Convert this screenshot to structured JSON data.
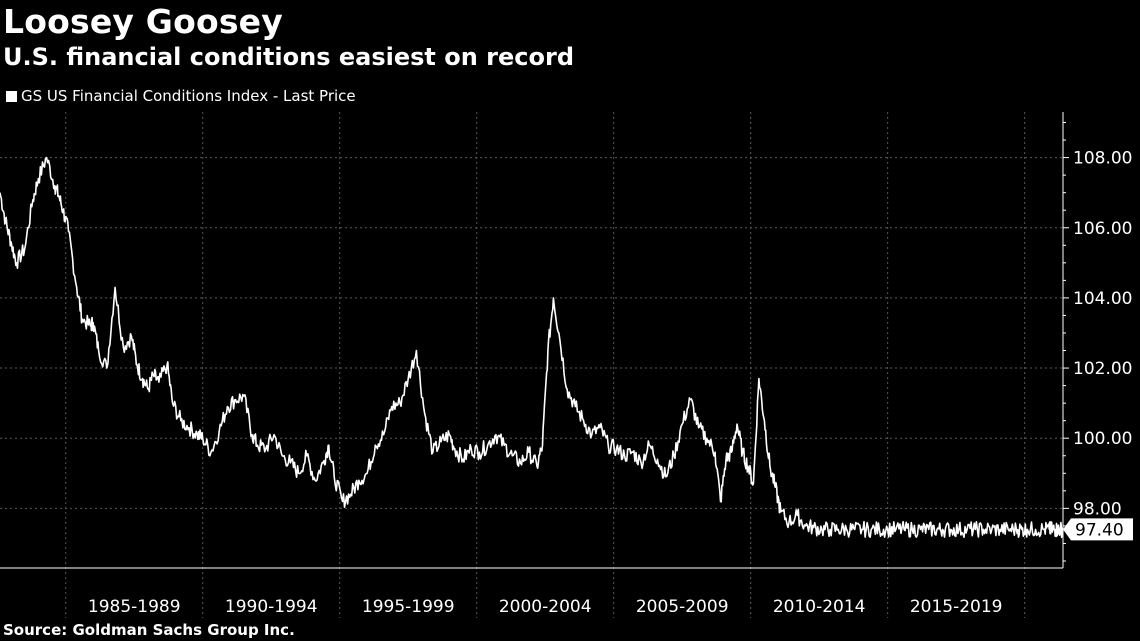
{
  "title": "Loosey Goosey",
  "subtitle": "U.S. financial conditions easiest on record",
  "source": "Source: Goldman Sachs Group Inc.",
  "colors": {
    "background": "#000000",
    "line": "#ffffff",
    "grid": "#5a5a5a"
  },
  "chart_data": {
    "type": "line",
    "title": "Loosey Goosey",
    "subtitle": "U.S. financial conditions easiest on record",
    "legend": "top-left",
    "grid": true,
    "ylim": [
      96.3,
      109.3
    ],
    "y_ticks": [
      "98.00",
      "100.00",
      "102.00",
      "104.00",
      "106.00",
      "108.00"
    ],
    "y_tick_values": [
      98,
      100,
      102,
      104,
      106,
      108
    ],
    "x_range": [
      1981.6,
      2020.4
    ],
    "x_categories": [
      "1985-1989",
      "1990-1994",
      "1995-1999",
      "2000-2004",
      "2005-2009",
      "2010-2014",
      "2015-2019"
    ],
    "x_category_starts": [
      1984,
      1989,
      1994,
      1999,
      2004,
      2009,
      2014,
      2019
    ],
    "last_value_label": "97.40",
    "series": [
      {
        "name": "GS US Financial Conditions Index - Last Price",
        "x": [
          1981.6,
          1981.8,
          1982.0,
          1982.2,
          1982.5,
          1982.8,
          1983.0,
          1983.3,
          1983.6,
          1983.75,
          1983.9,
          1984.1,
          1984.4,
          1984.6,
          1984.9,
          1985.0,
          1985.2,
          1985.5,
          1985.8,
          1986.1,
          1986.4,
          1986.6,
          1986.8,
          1987.0,
          1987.2,
          1987.4,
          1987.7,
          1987.9,
          1988.2,
          1988.5,
          1988.8,
          1989.0,
          1989.3,
          1989.6,
          1989.9,
          1990.2,
          1990.5,
          1990.8,
          1991.0,
          1991.3,
          1991.6,
          1991.9,
          1992.2,
          1992.5,
          1992.8,
          1993.1,
          1993.4,
          1993.6,
          1993.8,
          1994.1,
          1994.4,
          1994.7,
          1995.0,
          1995.3,
          1995.6,
          1995.9,
          1996.2,
          1996.5,
          1996.8,
          1997.1,
          1997.4,
          1997.7,
          1998.0,
          1998.2,
          1998.5,
          1998.8,
          1999.1,
          1999.4,
          1999.7,
          2000.0,
          2000.3,
          2000.6,
          2000.9,
          2001.2,
          2001.4,
          2001.6,
          2001.8,
          2002.0,
          2002.3,
          2002.6,
          2002.9,
          2003.2,
          2003.5,
          2003.8,
          2004.1,
          2004.4,
          2004.7,
          2005.0,
          2005.3,
          2005.6,
          2005.9,
          2006.2,
          2006.5,
          2006.8,
          2007.1,
          2007.4,
          2007.7,
          2007.9,
          2008.1,
          2008.3,
          2008.5,
          2008.7,
          2008.9,
          2009.1,
          2009.3,
          2009.5,
          2009.7,
          2009.9,
          2010.1,
          2010.4,
          2010.7,
          2011.0,
          2011.3,
          2011.6,
          2011.9,
          2012.2,
          2012.5,
          2012.8,
          2013.1,
          2013.4,
          2013.7,
          2014.0,
          2014.3,
          2014.6,
          2014.9,
          2015.2,
          2015.5,
          2015.8,
          2016.0,
          2016.3,
          2016.6,
          2016.9,
          2017.2,
          2017.5,
          2017.8,
          2018.1,
          2018.4,
          2018.7,
          2018.9,
          2019.1,
          2019.4,
          2019.7,
          2019.9,
          2020.0,
          2020.1,
          2020.2,
          2020.3,
          2020.4
        ],
        "values": [
          107.0,
          106.2,
          105.6,
          105.0,
          105.4,
          106.8,
          107.4,
          108.0,
          107.2,
          106.9,
          106.5,
          105.9,
          104.3,
          103.4,
          103.2,
          103.3,
          102.5,
          102.0,
          104.3,
          102.6,
          102.9,
          102.1,
          101.7,
          101.4,
          101.8,
          101.6,
          102.1,
          101.0,
          100.5,
          100.3,
          100.1,
          100.0,
          99.6,
          100.2,
          100.9,
          101.1,
          101.2,
          100.1,
          99.8,
          99.7,
          100.1,
          99.5,
          99.3,
          99.0,
          99.5,
          98.8,
          99.3,
          99.8,
          98.9,
          98.2,
          98.4,
          98.8,
          99.0,
          99.8,
          100.1,
          100.9,
          101.0,
          101.7,
          102.5,
          100.7,
          99.6,
          99.9,
          100.1,
          99.7,
          99.4,
          99.7,
          99.6,
          99.8,
          100.1,
          99.8,
          99.5,
          99.3,
          99.6,
          99.2,
          99.8,
          102.5,
          104.0,
          103.0,
          101.4,
          100.9,
          100.5,
          100.1,
          100.3,
          99.8,
          99.7,
          99.5,
          99.6,
          99.3,
          99.8,
          99.4,
          98.9,
          99.5,
          100.4,
          101.1,
          100.3,
          100.0,
          99.6,
          98.2,
          99.4,
          99.6,
          100.4,
          99.6,
          99.2,
          98.7,
          101.7,
          100.5,
          99.2,
          98.6,
          97.9,
          97.6,
          97.8,
          97.5,
          97.45,
          97.4,
          97.4,
          97.4,
          97.4,
          97.4,
          97.4,
          97.4,
          97.4,
          97.4,
          97.4,
          97.4,
          97.4,
          97.4,
          97.4,
          97.4,
          97.4,
          97.4,
          97.4,
          97.4,
          97.4,
          97.4,
          97.4,
          97.4,
          97.4,
          97.4,
          97.4,
          97.4,
          97.4,
          97.4,
          97.4,
          97.4,
          97.4,
          97.4,
          97.4,
          97.4
        ]
      }
    ]
  }
}
